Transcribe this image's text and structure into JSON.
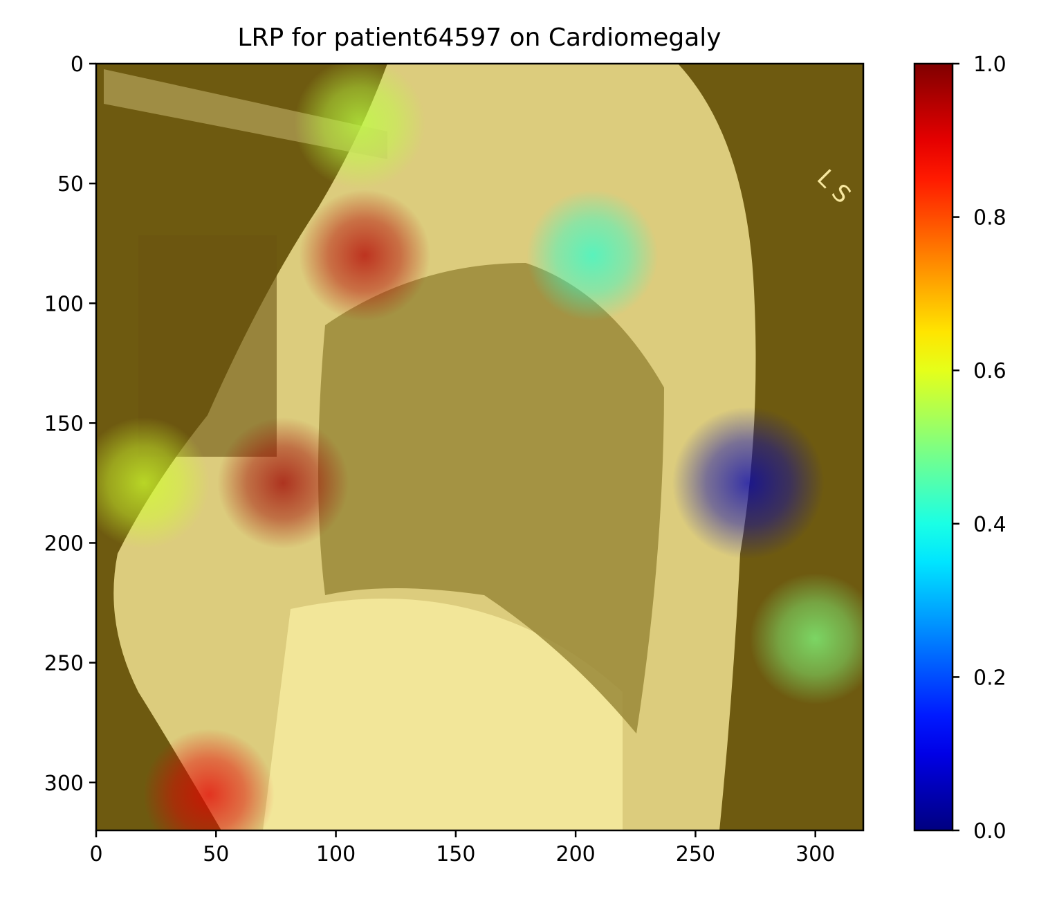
{
  "chart_data": {
    "type": "heatmap",
    "title": "LRP for patient64597 on Cardiomegaly",
    "image_description_visible": "lateral chest X-ray overlaid with relevance heatmap",
    "xlim": [
      0,
      320
    ],
    "ylim": [
      320,
      0
    ],
    "x_ticks": [
      0,
      50,
      100,
      150,
      200,
      250,
      300
    ],
    "x_tick_labels": [
      "0",
      "50",
      "100",
      "150",
      "200",
      "250",
      "300"
    ],
    "y_ticks": [
      0,
      50,
      100,
      150,
      200,
      250,
      300
    ],
    "y_tick_labels": [
      "0",
      "50",
      "100",
      "150",
      "200",
      "250",
      "300"
    ],
    "colormap": "jet",
    "colorbar": {
      "range": [
        0.0,
        1.0
      ],
      "ticks": [
        0.0,
        0.2,
        0.4,
        0.6,
        0.8,
        1.0
      ],
      "tick_labels": [
        "0.0",
        "0.2",
        "0.4",
        "0.6",
        "0.8",
        "1.0"
      ],
      "colors": [
        "#000080",
        "#0000ff",
        "#0080ff",
        "#00ffff",
        "#80ff80",
        "#ffff00",
        "#ff8000",
        "#ff0000",
        "#800000"
      ]
    },
    "background_relevance": 0.62,
    "hotspots": [
      {
        "x": 112,
        "y": 80,
        "value": 0.95
      },
      {
        "x": 78,
        "y": 175,
        "value": 0.97
      },
      {
        "x": 47,
        "y": 305,
        "value": 0.9
      },
      {
        "x": 20,
        "y": 175,
        "value": 0.58
      },
      {
        "x": 207,
        "y": 80,
        "value": 0.42
      },
      {
        "x": 272,
        "y": 175,
        "value": 0.05
      },
      {
        "x": 300,
        "y": 240,
        "value": 0.5
      },
      {
        "x": 110,
        "y": 25,
        "value": 0.56
      }
    ]
  }
}
